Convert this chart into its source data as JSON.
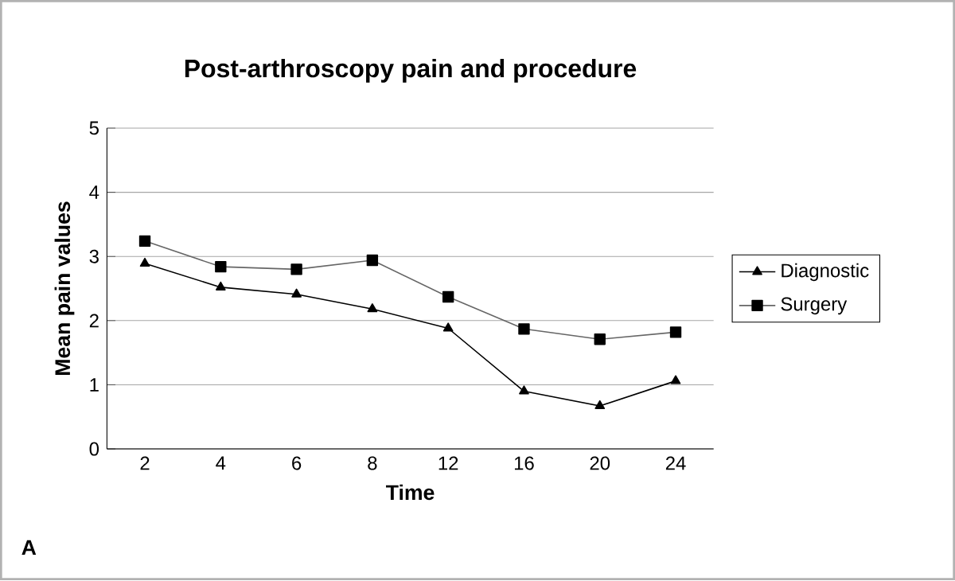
{
  "chart_data": {
    "type": "line",
    "title": "Post-arthroscopy pain and procedure",
    "xlabel": "Time",
    "ylabel": "Mean pain values",
    "categories": [
      "2",
      "4",
      "6",
      "8",
      "12",
      "16",
      "20",
      "24"
    ],
    "series": [
      {
        "name": "Diagnostic",
        "color": "#000000",
        "marker": "triangle",
        "values": [
          2.89,
          2.52,
          2.41,
          2.18,
          1.88,
          0.9,
          0.67,
          1.06
        ]
      },
      {
        "name": "Surgery",
        "color": "#666666",
        "marker": "square",
        "values": [
          3.24,
          2.84,
          2.8,
          2.94,
          2.37,
          1.87,
          1.71,
          1.82
        ]
      }
    ],
    "ylim": [
      0,
      5
    ],
    "yticks": [
      0,
      1,
      2,
      3,
      4,
      5
    ],
    "grid": "y",
    "legend": "right",
    "annotations": [
      "A"
    ]
  }
}
